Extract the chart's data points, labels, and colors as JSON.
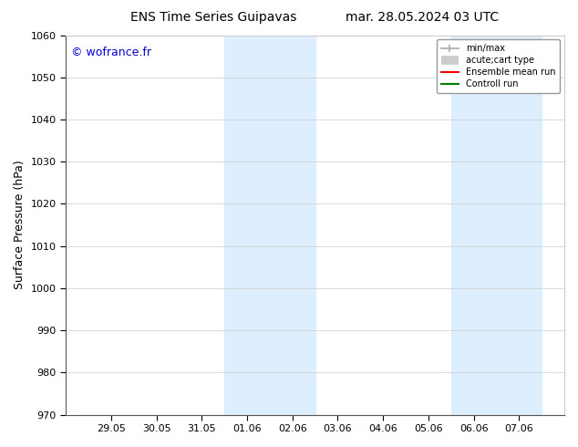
{
  "title_left": "ENS Time Series Guipavas",
  "title_right": "mar. 28.05.2024 03 UTC",
  "ylabel": "Surface Pressure (hPa)",
  "ylim": [
    970,
    1060
  ],
  "yticks": [
    970,
    980,
    990,
    1000,
    1010,
    1020,
    1030,
    1040,
    1050,
    1060
  ],
  "xtick_positions": [
    1,
    2,
    3,
    4,
    5,
    6,
    7,
    8,
    9,
    10
  ],
  "xtick_labels": [
    "29.05",
    "30.05",
    "31.05",
    "01.06",
    "02.06",
    "03.06",
    "04.06",
    "05.06",
    "06.06",
    "07.06"
  ],
  "xlim": [
    0,
    11
  ],
  "shaded_regions": [
    {
      "start": 3.5,
      "end": 5.5
    },
    {
      "start": 8.5,
      "end": 10.5
    }
  ],
  "shade_color": "#ddeeff",
  "watermark_text": "© wofrance.fr",
  "watermark_color": "#0000cc",
  "legend_entries": [
    {
      "label": "min/max"
    },
    {
      "label": "acute;cart type"
    },
    {
      "label": "Ensemble mean run"
    },
    {
      "label": "Controll run"
    }
  ],
  "legend_colors": [
    "#aaaaaa",
    "#cccccc",
    "#ff0000",
    "#008000"
  ],
  "bg_color": "#ffffff",
  "grid_color": "#cccccc",
  "title_fontsize": 10,
  "label_fontsize": 9,
  "tick_fontsize": 8
}
